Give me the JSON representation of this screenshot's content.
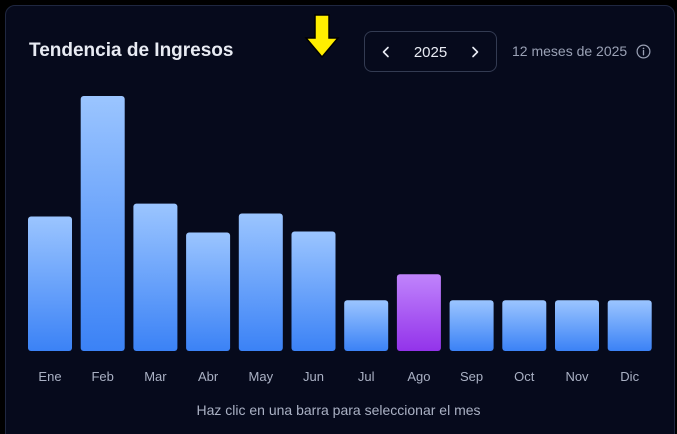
{
  "header": {
    "title": "Tendencia de Ingresos",
    "year": "2025",
    "months_label": "12 meses de 2025"
  },
  "hint": "Haz clic en una barra para seleccionar el mes",
  "colors": {
    "bar_top": "#9bc5ff",
    "bar_bottom": "#3b82f6",
    "selected_top": "#c084fc",
    "selected_bottom": "#9333ea",
    "arrow": "#ffee00"
  },
  "chart_data": {
    "type": "bar",
    "categories": [
      "Ene",
      "Feb",
      "Mar",
      "Abr",
      "May",
      "Jun",
      "Jul",
      "Ago",
      "Sep",
      "Oct",
      "Nov",
      "Dic"
    ],
    "values": [
      135,
      256,
      148,
      119,
      138,
      120,
      51,
      77,
      51,
      51,
      51,
      51
    ],
    "selected": "Ago",
    "ylim": [
      0,
      260
    ]
  }
}
